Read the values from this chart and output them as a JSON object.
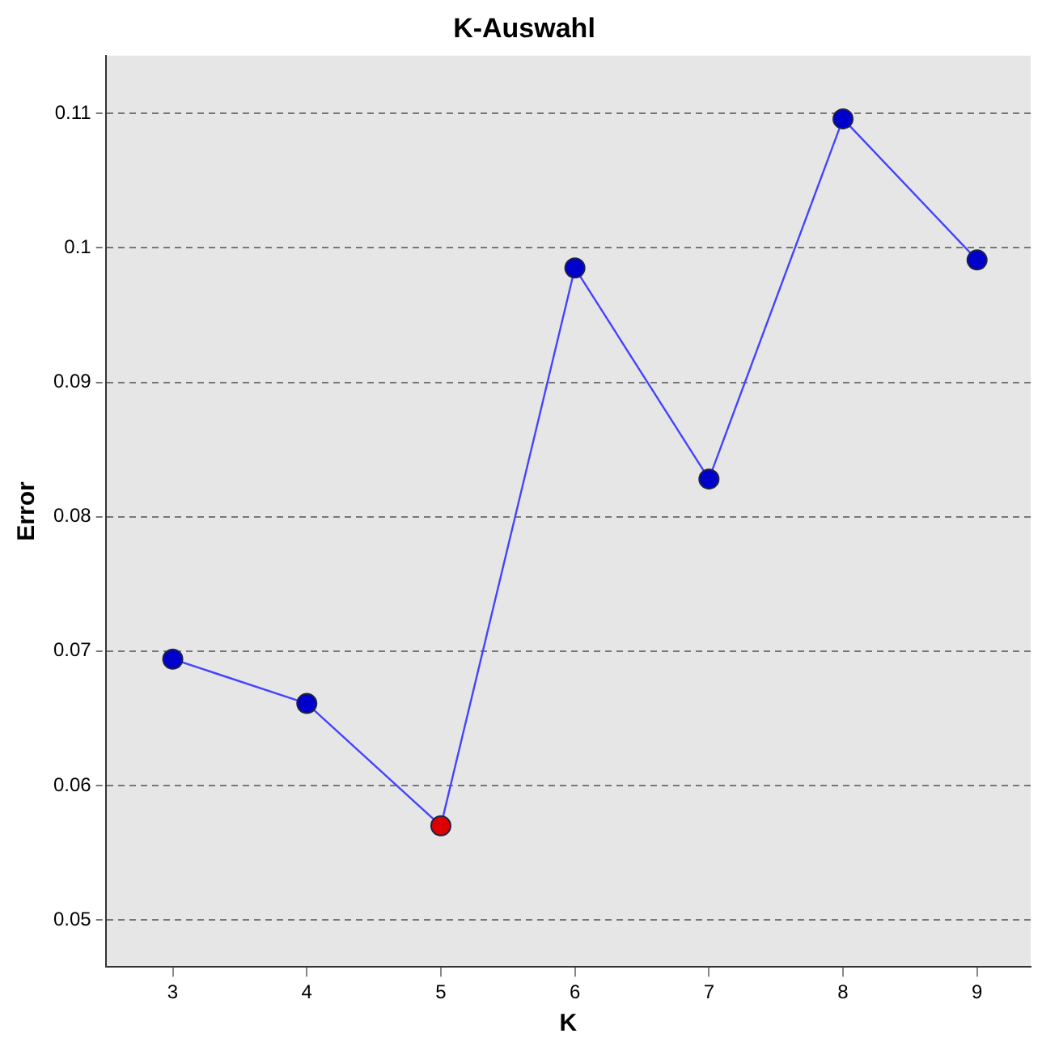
{
  "chart_data": {
    "type": "line",
    "title": "K-Auswahl",
    "xlabel": "K",
    "ylabel": "Error",
    "x": [
      3,
      4,
      5,
      6,
      7,
      8,
      9
    ],
    "series": [
      {
        "color": "#4444ff",
        "colors": [
          "#0000cc",
          "#0000cc",
          "#dd0000",
          "#0000cc",
          "#0000cc",
          "#0000cc",
          "#0000cc"
        ],
        "values": [
          0.0694,
          0.0661,
          0.057,
          0.0985,
          0.0828,
          0.1096,
          0.0991
        ]
      }
    ],
    "xlim": [
      2.5,
      9.4
    ],
    "xticks": [
      3,
      4,
      5,
      6,
      7,
      8,
      9
    ],
    "ylim": [
      0.0465,
      0.1143
    ],
    "yticks": [
      0.05,
      0.06,
      0.07,
      0.08,
      0.09,
      0.1,
      0.11
    ],
    "grid": "y",
    "marker": "circle",
    "line_style": "solid"
  }
}
